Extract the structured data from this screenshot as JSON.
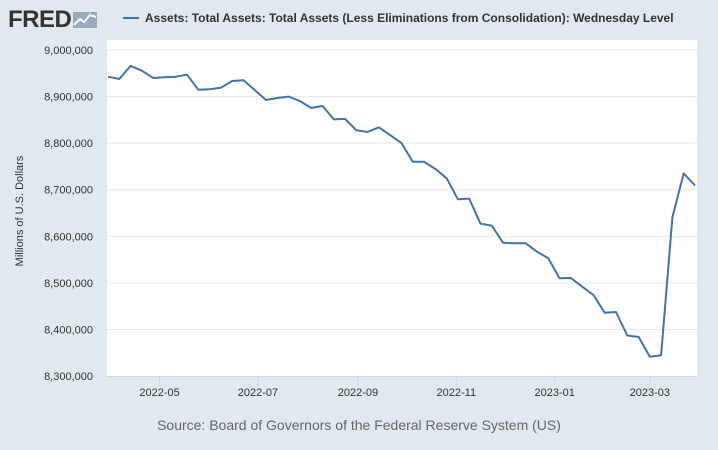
{
  "header": {
    "logo_text": "FRED",
    "legend_label": "Assets: Total Assets: Total Assets (Less Eliminations from Consolidation): Wednesday Level"
  },
  "footer": {
    "source": "Source: Board of Governors of the Federal Reserve System (US)"
  },
  "colors": {
    "series": "#4572a7",
    "background": "#e1e9f0",
    "plot": "#ffffff",
    "grid": "#e6e6e6"
  },
  "chart_data": {
    "type": "line",
    "title": "",
    "xlabel": "",
    "ylabel": "Millions of U.S. Dollars",
    "ylim": [
      8300000,
      9000000
    ],
    "xlim": [
      "2022-03-30",
      "2023-03-29"
    ],
    "grid": true,
    "legend": "top",
    "y_ticks": [
      9000000,
      8900000,
      8800000,
      8700000,
      8600000,
      8500000,
      8400000,
      8300000
    ],
    "y_tick_labels": [
      "9,000,000",
      "8,900,000",
      "8,800,000",
      "8,700,000",
      "8,600,000",
      "8,500,000",
      "8,400,000",
      "8,300,000"
    ],
    "x_ticks": [
      "2022-05-01",
      "2022-07-01",
      "2022-09-01",
      "2022-11-01",
      "2023-01-01",
      "2023-03-01"
    ],
    "x_tick_labels": [
      "2022-05",
      "2022-07",
      "2022-09",
      "2022-11",
      "2023-01",
      "2023-03"
    ],
    "series": [
      {
        "name": "Assets: Total Assets: Total Assets (Less Eliminations from Consolidation): Wednesday Level",
        "x": [
          "2022-03-30",
          "2022-04-06",
          "2022-04-13",
          "2022-04-20",
          "2022-04-27",
          "2022-05-04",
          "2022-05-11",
          "2022-05-18",
          "2022-05-25",
          "2022-06-01",
          "2022-06-08",
          "2022-06-15",
          "2022-06-22",
          "2022-06-29",
          "2022-07-06",
          "2022-07-13",
          "2022-07-20",
          "2022-07-27",
          "2022-08-03",
          "2022-08-10",
          "2022-08-17",
          "2022-08-24",
          "2022-08-31",
          "2022-09-07",
          "2022-09-14",
          "2022-09-21",
          "2022-09-28",
          "2022-10-05",
          "2022-10-12",
          "2022-10-19",
          "2022-10-26",
          "2022-11-02",
          "2022-11-09",
          "2022-11-16",
          "2022-11-23",
          "2022-11-30",
          "2022-12-07",
          "2022-12-14",
          "2022-12-21",
          "2022-12-28",
          "2023-01-04",
          "2023-01-11",
          "2023-01-18",
          "2023-01-25",
          "2023-02-01",
          "2023-02-08",
          "2023-02-15",
          "2023-02-22",
          "2023-03-01",
          "2023-03-08",
          "2023-03-15",
          "2023-03-22",
          "2023-03-29"
        ],
        "values": [
          8942700,
          8937700,
          8966000,
          8955600,
          8939900,
          8941400,
          8942700,
          8947000,
          8914800,
          8915600,
          8919000,
          8933400,
          8935000,
          8914000,
          8892600,
          8897000,
          8900000,
          8890500,
          8875500,
          8880000,
          8851000,
          8852000,
          8827600,
          8824000,
          8834000,
          8817000,
          8800000,
          8760000,
          8760000,
          8744500,
          8724500,
          8679500,
          8681000,
          8627000,
          8623000,
          8586000,
          8585000,
          8585000,
          8567000,
          8553000,
          8510000,
          8510500,
          8492000,
          8474000,
          8436000,
          8437500,
          8387000,
          8384000,
          8341500,
          8344500,
          8641000,
          8735000,
          8709000
        ]
      }
    ]
  }
}
